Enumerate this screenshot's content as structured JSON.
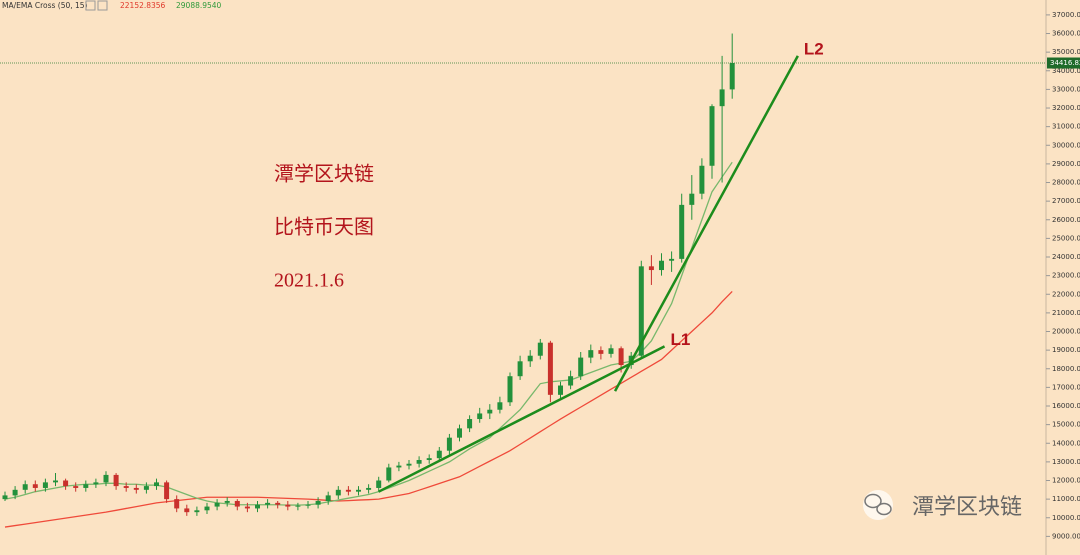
{
  "chart_data": {
    "type": "candlestick",
    "indicator": "MA/EMA Cross (50, 15)",
    "ylim": [
      8000,
      37800
    ],
    "yticks": [
      {
        "value": 9000,
        "label": "9000.00"
      },
      {
        "value": 10000,
        "label": "10000.00"
      },
      {
        "value": 11000,
        "label": "11000.00"
      },
      {
        "value": 12000,
        "label": "12000.00"
      },
      {
        "value": 13000,
        "label": "13000.00"
      },
      {
        "value": 14000,
        "label": "14000.00"
      },
      {
        "value": 15000,
        "label": "15000.00"
      },
      {
        "value": 16000,
        "label": "16000.00"
      },
      {
        "value": 17000,
        "label": "17000.00"
      },
      {
        "value": 18000,
        "label": "18000.00"
      },
      {
        "value": 19000,
        "label": "19000.00"
      },
      {
        "value": 20000,
        "label": "20000.00"
      },
      {
        "value": 21000,
        "label": "21000.00"
      },
      {
        "value": 22000,
        "label": "22000.00"
      },
      {
        "value": 23000,
        "label": "23000.00"
      },
      {
        "value": 24000,
        "label": "24000.00"
      },
      {
        "value": 25000,
        "label": "25000.00"
      },
      {
        "value": 26000,
        "label": "26000.00"
      },
      {
        "value": 27000,
        "label": "27000.00"
      },
      {
        "value": 28000,
        "label": "28000.00"
      },
      {
        "value": 29000,
        "label": "29000.00"
      },
      {
        "value": 30000,
        "label": "30000.00"
      },
      {
        "value": 31000,
        "label": "31000.00"
      },
      {
        "value": 32000,
        "label": "32000.00"
      },
      {
        "value": 33000,
        "label": "33000.00"
      },
      {
        "value": 34000,
        "label": "34000.00"
      },
      {
        "value": 35000,
        "label": "35000.00"
      },
      {
        "value": 36000,
        "label": "36000.00"
      },
      {
        "value": 37000,
        "label": "37000.00"
      }
    ],
    "up_color": "#23913c",
    "down_color": "#c9302c",
    "candles": [
      [
        11000,
        11400,
        10900,
        11200
      ],
      [
        11200,
        11700,
        11000,
        11500
      ],
      [
        11500,
        12000,
        11300,
        11800
      ],
      [
        11800,
        12000,
        11400,
        11600
      ],
      [
        11600,
        12100,
        11400,
        11900
      ],
      [
        11900,
        12400,
        11700,
        12000
      ],
      [
        12000,
        12100,
        11500,
        11700
      ],
      [
        11700,
        11900,
        11400,
        11600
      ],
      [
        11600,
        12000,
        11400,
        11800
      ],
      [
        11800,
        12100,
        11600,
        11900
      ],
      [
        11900,
        12500,
        11700,
        12300
      ],
      [
        12300,
        12400,
        11500,
        11700
      ],
      [
        11700,
        11900,
        11400,
        11600
      ],
      [
        11600,
        11800,
        11300,
        11500
      ],
      [
        11500,
        11900,
        11300,
        11700
      ],
      [
        11700,
        12100,
        11500,
        11900
      ],
      [
        11900,
        12000,
        10800,
        11000
      ],
      [
        11000,
        11200,
        10300,
        10500
      ],
      [
        10500,
        10700,
        10100,
        10300
      ],
      [
        10300,
        10600,
        10100,
        10400
      ],
      [
        10400,
        10800,
        10200,
        10600
      ],
      [
        10600,
        11000,
        10400,
        10800
      ],
      [
        10800,
        11100,
        10600,
        10900
      ],
      [
        10900,
        11000,
        10400,
        10600
      ],
      [
        10600,
        10800,
        10300,
        10500
      ],
      [
        10500,
        10900,
        10300,
        10700
      ],
      [
        10700,
        11000,
        10500,
        10800
      ],
      [
        10800,
        10900,
        10500,
        10700
      ],
      [
        10700,
        10900,
        10400,
        10600
      ],
      [
        10600,
        10800,
        10400,
        10650
      ],
      [
        10650,
        10900,
        10500,
        10700
      ],
      [
        10700,
        11100,
        10500,
        10900
      ],
      [
        10900,
        11400,
        10700,
        11200
      ],
      [
        11200,
        11700,
        11000,
        11500
      ],
      [
        11500,
        11700,
        11200,
        11400
      ],
      [
        11400,
        11700,
        11200,
        11500
      ],
      [
        11500,
        11800,
        11300,
        11600
      ],
      [
        11600,
        12200,
        11400,
        12000
      ],
      [
        12000,
        12900,
        11900,
        12700
      ],
      [
        12700,
        13000,
        12500,
        12800
      ],
      [
        12800,
        13100,
        12600,
        12900
      ],
      [
        12900,
        13300,
        12700,
        13100
      ],
      [
        13100,
        13400,
        12900,
        13200
      ],
      [
        13200,
        13800,
        13000,
        13600
      ],
      [
        13600,
        14500,
        13400,
        14300
      ],
      [
        14300,
        15000,
        14100,
        14800
      ],
      [
        14800,
        15500,
        14600,
        15300
      ],
      [
        15300,
        15900,
        15100,
        15600
      ],
      [
        15600,
        16100,
        15300,
        15800
      ],
      [
        15800,
        16500,
        15600,
        16200
      ],
      [
        16200,
        17800,
        16000,
        17600
      ],
      [
        17600,
        18700,
        17400,
        18400
      ],
      [
        18400,
        19000,
        18100,
        18700
      ],
      [
        18700,
        19600,
        18500,
        19400
      ],
      [
        19400,
        19500,
        16200,
        16600
      ],
      [
        16600,
        17300,
        16300,
        17100
      ],
      [
        17100,
        17900,
        16900,
        17600
      ],
      [
        17600,
        18900,
        17400,
        18600
      ],
      [
        18600,
        19300,
        18300,
        19000
      ],
      [
        19000,
        19200,
        18500,
        18800
      ],
      [
        18800,
        19300,
        18600,
        19100
      ],
      [
        19100,
        19200,
        17800,
        18200
      ],
      [
        18200,
        18900,
        18000,
        18700
      ],
      [
        18700,
        23800,
        18600,
        23500
      ],
      [
        23500,
        24100,
        22500,
        23300
      ],
      [
        23300,
        24200,
        23000,
        23800
      ],
      [
        23800,
        24300,
        23200,
        23900
      ],
      [
        23900,
        27400,
        23700,
        26800
      ],
      [
        26800,
        28400,
        26000,
        27400
      ],
      [
        27400,
        29300,
        27100,
        28900
      ],
      [
        28900,
        32200,
        28200,
        32100
      ],
      [
        32100,
        34800,
        28000,
        33000
      ],
      [
        33000,
        36000,
        32500,
        34416.82
      ]
    ],
    "series": [
      {
        "color": "#ef4a3a",
        "readout": "22152.8356",
        "values": [
          9500,
          9580,
          9660,
          9740,
          9820,
          9900,
          9980,
          10060,
          10140,
          10220,
          10300,
          10400,
          10500,
          10600,
          10700,
          10800,
          10860,
          10920,
          10980,
          11040,
          11100,
          11100,
          11100,
          11100,
          11100,
          11100,
          11080,
          11060,
          11040,
          11020,
          11000,
          10970,
          10930,
          10900,
          10920,
          10950,
          10970,
          11000,
          11100,
          11200,
          11300,
          11480,
          11660,
          11840,
          12020,
          12200,
          12480,
          12760,
          13040,
          13320,
          13600,
          13940,
          14280,
          14620,
          14960,
          15300,
          15620,
          15940,
          16260,
          16580,
          16900,
          17220,
          17540,
          17860,
          18180,
          18500,
          19000,
          19500,
          20000,
          20500,
          21000,
          21600,
          22152.8356
        ]
      },
      {
        "color": "#78b86c",
        "readout": "29088.9540",
        "values": [
          11000,
          11100,
          11250,
          11400,
          11500,
          11600,
          11700,
          11750,
          11800,
          11800,
          11850,
          11850,
          11800,
          11800,
          11750,
          11750,
          11650,
          11450,
          11250,
          11050,
          10900,
          10800,
          10750,
          10700,
          10700,
          10700,
          10700,
          10700,
          10680,
          10680,
          10700,
          10750,
          10850,
          10950,
          11050,
          11150,
          11250,
          11400,
          11600,
          11800,
          12000,
          12250,
          12500,
          12750,
          13000,
          13350,
          13700,
          14000,
          14300,
          14800,
          15300,
          15800,
          16500,
          17200,
          17300,
          17350,
          17400,
          17600,
          17800,
          18000,
          18200,
          18300,
          18400,
          18900,
          19500,
          20500,
          21500,
          23000,
          24500,
          26000,
          27500,
          28300,
          29088.954
        ]
      }
    ],
    "trendlines": [
      {
        "name": "L1",
        "color": "#1c8c1c",
        "points": [
          [
            37,
            11400
          ],
          [
            65.3,
            19200
          ]
        ]
      },
      {
        "name": "L2",
        "color": "#1c8c1c",
        "points": [
          [
            60.4,
            16800
          ],
          [
            78.5,
            34800
          ]
        ]
      }
    ],
    "last_price": {
      "value": 34416.82,
      "label": "34416.82"
    },
    "annotations": [
      "潭学区块链",
      "比特币天图",
      "2021.1.6"
    ],
    "watermark": "潭学区块链"
  }
}
